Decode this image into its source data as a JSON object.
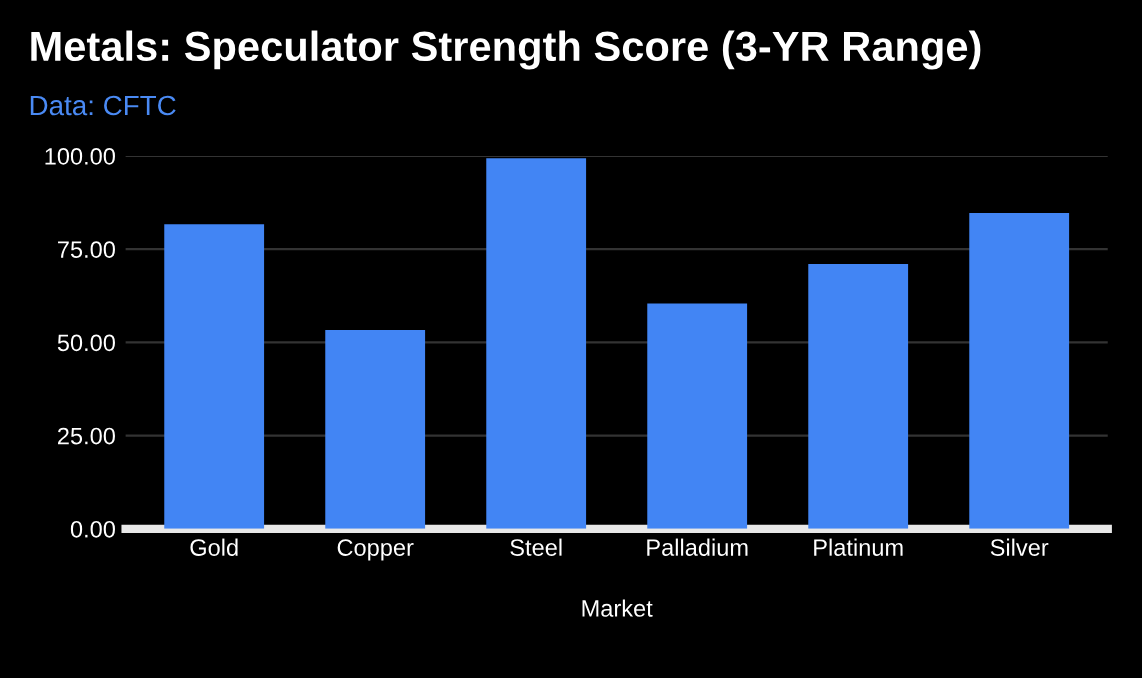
{
  "chart_data": {
    "type": "bar",
    "title": "Metals: Speculator Strength Score (3-YR Range)",
    "subtitle": "Data: CFTC",
    "xlabel": "Market",
    "categories": [
      "Gold",
      "Copper",
      "Steel",
      "Palladium",
      "Platinum",
      "Silver"
    ],
    "values": [
      81.7,
      53.3,
      99.4,
      60.4,
      71.0,
      84.7
    ],
    "color": "#4285f4",
    "ylim": [
      0,
      100
    ],
    "yticks": [
      {
        "value": 0,
        "label": "0.00"
      },
      {
        "value": 25,
        "label": "25.00"
      },
      {
        "value": 50,
        "label": "50.00"
      },
      {
        "value": 75,
        "label": "75.00"
      },
      {
        "value": 100,
        "label": "100.00"
      }
    ],
    "grid": "y"
  }
}
